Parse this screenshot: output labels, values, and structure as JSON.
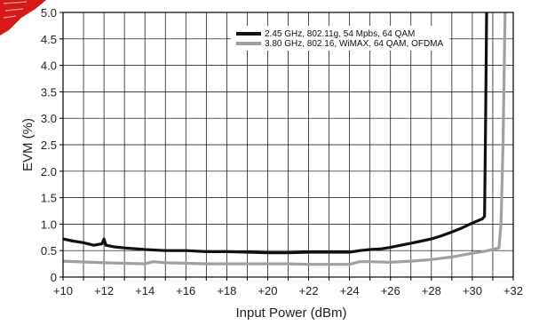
{
  "chart_data": {
    "type": "line",
    "xlabel": "Input Power (dBm)",
    "ylabel": "EVM (%)",
    "xlim": [
      10,
      32
    ],
    "ylim": [
      0,
      5.0
    ],
    "grid": true,
    "legend_position": "top-right",
    "x_ticks": [
      10,
      11,
      12,
      13,
      14,
      15,
      16,
      17,
      18,
      19,
      20,
      21,
      22,
      23,
      24,
      25,
      26,
      27,
      28,
      29,
      30,
      31,
      32
    ],
    "x_tick_labels": [
      "+10",
      "+12",
      "+14",
      "+16",
      "+18",
      "+20",
      "+22",
      "+24",
      "+26",
      "+28",
      "+30",
      "+32"
    ],
    "x_tick_label_values": [
      10,
      12,
      14,
      16,
      18,
      20,
      22,
      24,
      26,
      28,
      30,
      32
    ],
    "y_ticks": [
      0,
      0.5,
      1.0,
      1.5,
      2.0,
      2.5,
      3.0,
      3.5,
      4.0,
      4.5,
      5.0
    ],
    "y_tick_labels": [
      "0",
      "0.5",
      "1.0",
      "1.5",
      "2.0",
      "2.5",
      "3.0",
      "3.5",
      "4.0",
      "4.5",
      "5.0"
    ],
    "series": [
      {
        "name": "2.45 GHz, 802.11g, 54 Mpbs, 64 QAM",
        "color": "#111111",
        "x": [
          10,
          10.5,
          11,
          11.5,
          11.9,
          12,
          12.1,
          12.5,
          13,
          14,
          15,
          16,
          17,
          18,
          19,
          20,
          21,
          22,
          23,
          24,
          24.5,
          25,
          25.5,
          26,
          26.5,
          27,
          27.5,
          28,
          28.5,
          29,
          29.5,
          30,
          30.5,
          30.6,
          30.65,
          30.7
        ],
        "y": [
          0.72,
          0.68,
          0.65,
          0.6,
          0.63,
          0.72,
          0.6,
          0.57,
          0.55,
          0.52,
          0.5,
          0.5,
          0.48,
          0.48,
          0.47,
          0.46,
          0.46,
          0.47,
          0.47,
          0.47,
          0.5,
          0.52,
          0.53,
          0.56,
          0.6,
          0.64,
          0.68,
          0.72,
          0.78,
          0.85,
          0.93,
          1.02,
          1.1,
          1.15,
          3.0,
          5.0
        ]
      },
      {
        "name": "3.80 GHz, 802.16, WiMAX, 64 QAM, OFDMA",
        "color": "#a0a0a0",
        "x": [
          10,
          12,
          14,
          14.4,
          15,
          16,
          17,
          18,
          19,
          20,
          21,
          22,
          23,
          24,
          24.5,
          25,
          26,
          27,
          28,
          29,
          30,
          30.5,
          31,
          31.3,
          31.4,
          31.5,
          31.6
        ],
        "y": [
          0.3,
          0.27,
          0.25,
          0.29,
          0.27,
          0.26,
          0.25,
          0.25,
          0.25,
          0.25,
          0.25,
          0.24,
          0.24,
          0.24,
          0.29,
          0.29,
          0.28,
          0.3,
          0.33,
          0.38,
          0.45,
          0.48,
          0.52,
          0.55,
          1.0,
          2.5,
          5.0
        ]
      }
    ]
  }
}
